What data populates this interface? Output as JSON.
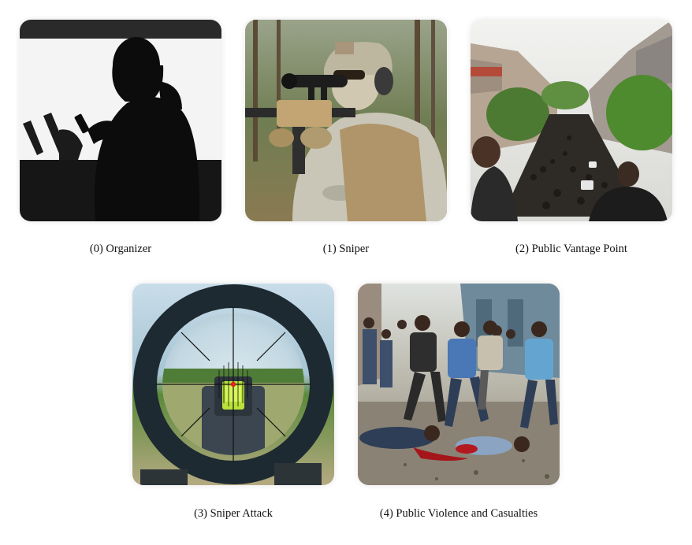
{
  "panels": [
    {
      "caption": "(0) Organizer"
    },
    {
      "caption": "(1) Sniper"
    },
    {
      "caption": "(2) Public Vantage Point"
    },
    {
      "caption": "(3) Sniper Attack"
    },
    {
      "caption": "(4) Public Violence and Casualties"
    }
  ]
}
